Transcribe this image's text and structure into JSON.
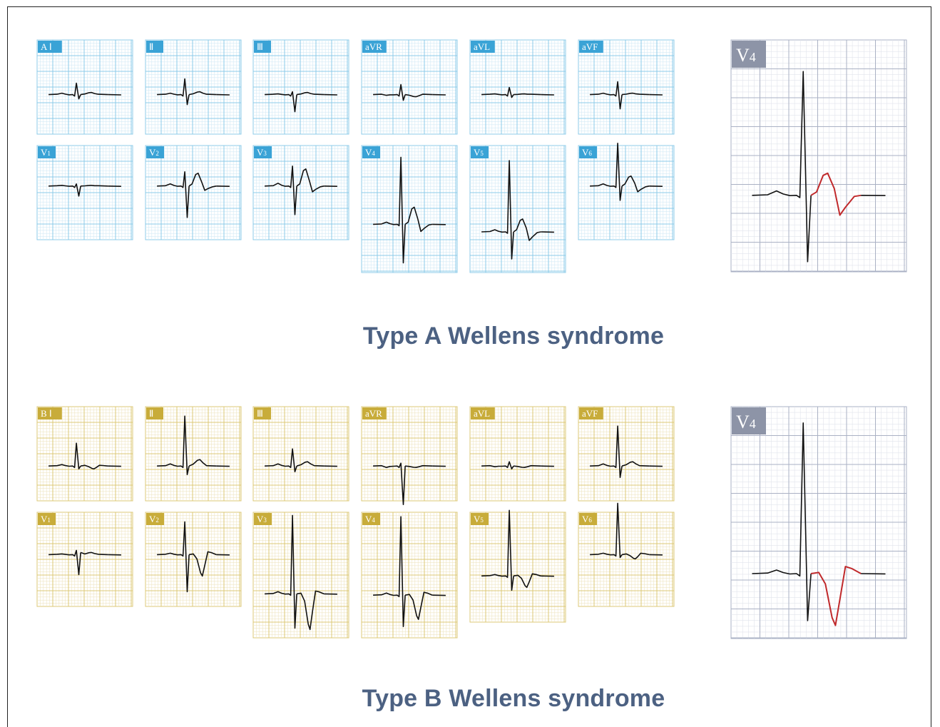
{
  "colors": {
    "typeA": "#3aa3d6",
    "typeA_grid": "#8ccbe9",
    "typeA_minor": "#d3eaf6",
    "typeB": "#c8ac3a",
    "typeB_grid": "#dcc877",
    "typeB_minor": "#efe6c3",
    "large_label": "#8d94a7",
    "large_grid": "#aab1c4",
    "large_minor": "#e1e4ec",
    "trace": "#111111",
    "highlight": "#c0292b",
    "caption": "#4c6182"
  },
  "captions": {
    "typeA": "Type A Wellens syndrome",
    "typeB": "Type B Wellens syndrome"
  },
  "large_leads": {
    "typeA": {
      "label": "V4"
    },
    "typeB": {
      "label": "V4"
    }
  },
  "panels": {
    "typeA": [
      {
        "label": "A Ⅰ"
      },
      {
        "label": "Ⅱ"
      },
      {
        "label": "Ⅲ"
      },
      {
        "label": "aVR"
      },
      {
        "label": "aVL"
      },
      {
        "label": "aVF"
      },
      {
        "label": "V1"
      },
      {
        "label": "V2"
      },
      {
        "label": "V3"
      },
      {
        "label": "V4"
      },
      {
        "label": "V5"
      },
      {
        "label": "V6"
      }
    ],
    "typeB": [
      {
        "label": "B Ⅰ"
      },
      {
        "label": "Ⅱ"
      },
      {
        "label": "Ⅲ"
      },
      {
        "label": "aVR"
      },
      {
        "label": "aVL"
      },
      {
        "label": "aVF"
      },
      {
        "label": "V1"
      },
      {
        "label": "V2"
      },
      {
        "label": "V3"
      },
      {
        "label": "V4"
      },
      {
        "label": "V5"
      },
      {
        "label": "V6"
      }
    ]
  }
}
